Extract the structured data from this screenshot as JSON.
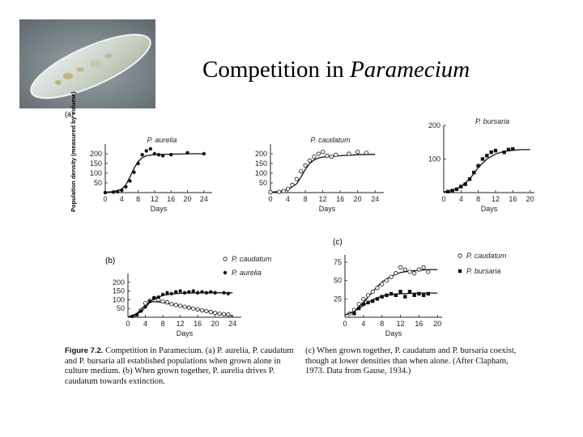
{
  "title": {
    "text": "Competition in ",
    "italic": "Paramecium"
  },
  "panel_labels": [
    "(a)",
    "(b)",
    "(c)"
  ],
  "chart_data": [
    {
      "type": "scatter",
      "panel": "a",
      "title": "P. aurelia",
      "xlabel": "Days",
      "ylabel": "Population density (measured by volume)",
      "xlim": [
        0,
        26
      ],
      "ylim": [
        0,
        250
      ],
      "x_ticks": [
        0,
        4,
        8,
        12,
        16,
        20,
        24
      ],
      "y_ticks": [
        50,
        100,
        150,
        200
      ],
      "series": [
        {
          "color": "#111111",
          "marker": "filled",
          "points": [
            [
              0,
              0
            ],
            [
              2,
              3
            ],
            [
              3,
              5
            ],
            [
              4,
              12
            ],
            [
              5,
              30
            ],
            [
              6,
              60
            ],
            [
              7,
              105
            ],
            [
              8,
              150
            ],
            [
              9,
              195
            ],
            [
              10,
              215
            ],
            [
              11,
              225
            ],
            [
              12,
              200
            ],
            [
              13,
              195
            ],
            [
              14,
              190
            ],
            [
              16,
              195
            ],
            [
              20,
              205
            ],
            [
              24,
              200
            ]
          ],
          "curve": [
            [
              0,
              2
            ],
            [
              2,
              5
            ],
            [
              4,
              18
            ],
            [
              5,
              40
            ],
            [
              6,
              80
            ],
            [
              7,
              125
            ],
            [
              8,
              160
            ],
            [
              9,
              180
            ],
            [
              10,
              190
            ],
            [
              12,
              196
            ],
            [
              16,
              198
            ],
            [
              20,
              200
            ],
            [
              24,
              200
            ]
          ]
        }
      ]
    },
    {
      "type": "scatter",
      "panel": "a",
      "title": "P. caudatum",
      "xlabel": "Days",
      "xlim": [
        0,
        26
      ],
      "ylim": [
        0,
        250
      ],
      "x_ticks": [
        0,
        4,
        8,
        12,
        16,
        20,
        24
      ],
      "y_ticks": [
        50,
        100,
        150,
        200
      ],
      "series": [
        {
          "color": "#111111",
          "marker": "open",
          "points": [
            [
              0,
              2
            ],
            [
              2,
              4
            ],
            [
              3,
              8
            ],
            [
              4,
              20
            ],
            [
              5,
              40
            ],
            [
              6,
              70
            ],
            [
              7,
              110
            ],
            [
              8,
              140
            ],
            [
              9,
              165
            ],
            [
              10,
              185
            ],
            [
              11,
              200
            ],
            [
              12,
              210
            ],
            [
              13,
              190
            ],
            [
              14,
              185
            ],
            [
              15,
              195
            ],
            [
              18,
              200
            ],
            [
              20,
              210
            ],
            [
              22,
              205
            ]
          ],
          "curve": [
            [
              0,
              2
            ],
            [
              2,
              5
            ],
            [
              4,
              15
            ],
            [
              6,
              45
            ],
            [
              7,
              80
            ],
            [
              8,
              120
            ],
            [
              9,
              150
            ],
            [
              10,
              168
            ],
            [
              11,
              178
            ],
            [
              12,
              183
            ],
            [
              16,
              190
            ],
            [
              20,
              195
            ],
            [
              24,
              197
            ]
          ]
        }
      ]
    },
    {
      "type": "scatter",
      "panel": "a",
      "title": "P. bursaria",
      "xlabel": "Days",
      "xlim": [
        0,
        21
      ],
      "ylim": [
        0,
        200
      ],
      "x_ticks": [
        0,
        4,
        8,
        12,
        16,
        20
      ],
      "y_ticks": [
        100,
        200
      ],
      "series": [
        {
          "color": "#111111",
          "marker": "filled-square",
          "points": [
            [
              1,
              3
            ],
            [
              2,
              6
            ],
            [
              3,
              10
            ],
            [
              4,
              18
            ],
            [
              5,
              25
            ],
            [
              6,
              40
            ],
            [
              7,
              60
            ],
            [
              8,
              80
            ],
            [
              9,
              100
            ],
            [
              10,
              110
            ],
            [
              11,
              120
            ],
            [
              12,
              125
            ],
            [
              14,
              120
            ],
            [
              15,
              128
            ],
            [
              16,
              130
            ]
          ],
          "curve": [
            [
              0,
              2
            ],
            [
              2,
              7
            ],
            [
              4,
              18
            ],
            [
              6,
              40
            ],
            [
              8,
              75
            ],
            [
              10,
              100
            ],
            [
              12,
              115
            ],
            [
              14,
              123
            ],
            [
              16,
              126
            ],
            [
              18,
              128
            ],
            [
              20,
              128
            ]
          ]
        }
      ]
    },
    {
      "type": "scatter",
      "panel": "b",
      "xlabel": "Days",
      "xlim": [
        0,
        26
      ],
      "ylim": [
        0,
        250
      ],
      "x_ticks": [
        0,
        4,
        8,
        12,
        16,
        20,
        24
      ],
      "y_ticks": [
        50,
        100,
        150,
        200
      ],
      "series": [
        {
          "name": "P. caudatum",
          "color": "#111111",
          "marker": "open",
          "points": [
            [
              2,
              10
            ],
            [
              3,
              40
            ],
            [
              4,
              80
            ],
            [
              5,
              95
            ],
            [
              6,
              110
            ],
            [
              7,
              100
            ],
            [
              8,
              90
            ],
            [
              9,
              85
            ],
            [
              10,
              75
            ],
            [
              11,
              70
            ],
            [
              12,
              65
            ],
            [
              13,
              60
            ],
            [
              14,
              55
            ],
            [
              15,
              50
            ],
            [
              16,
              45
            ],
            [
              17,
              40
            ],
            [
              18,
              35
            ],
            [
              19,
              30
            ],
            [
              20,
              25
            ],
            [
              21,
              20
            ],
            [
              22,
              18
            ],
            [
              23,
              15
            ]
          ],
          "curve": [
            [
              0,
              2
            ],
            [
              2,
              20
            ],
            [
              4,
              70
            ],
            [
              5,
              85
            ],
            [
              6,
              90
            ],
            [
              8,
              85
            ],
            [
              10,
              75
            ],
            [
              12,
              65
            ],
            [
              14,
              55
            ],
            [
              16,
              45
            ],
            [
              18,
              35
            ],
            [
              20,
              25
            ],
            [
              22,
              15
            ],
            [
              24,
              8
            ]
          ]
        },
        {
          "name": "P. aurelia",
          "color": "#111111",
          "marker": "filled",
          "points": [
            [
              1,
              5
            ],
            [
              2,
              15
            ],
            [
              3,
              35
            ],
            [
              4,
              60
            ],
            [
              5,
              90
            ],
            [
              6,
              110
            ],
            [
              7,
              115
            ],
            [
              8,
              130
            ],
            [
              9,
              140
            ],
            [
              10,
              135
            ],
            [
              11,
              145
            ],
            [
              12,
              150
            ],
            [
              13,
              140
            ],
            [
              14,
              145
            ],
            [
              15,
              150
            ],
            [
              16,
              140
            ],
            [
              17,
              145
            ],
            [
              18,
              140
            ],
            [
              19,
              145
            ],
            [
              20,
              140
            ],
            [
              22,
              140
            ],
            [
              23,
              135
            ]
          ],
          "curve": [
            [
              0,
              2
            ],
            [
              2,
              15
            ],
            [
              4,
              55
            ],
            [
              5,
              85
            ],
            [
              6,
              105
            ],
            [
              8,
              125
            ],
            [
              10,
              133
            ],
            [
              12,
              137
            ],
            [
              16,
              140
            ],
            [
              20,
              140
            ],
            [
              24,
              140
            ]
          ]
        }
      ]
    },
    {
      "type": "scatter",
      "panel": "c",
      "xlabel": "Days",
      "xlim": [
        0,
        21
      ],
      "ylim": [
        0,
        85
      ],
      "x_ticks": [
        0,
        4,
        8,
        12,
        16,
        20
      ],
      "y_ticks": [
        25,
        50,
        75
      ],
      "series": [
        {
          "name": "P. caudatum",
          "color": "#111111",
          "marker": "open",
          "points": [
            [
              1,
              5
            ],
            [
              2,
              10
            ],
            [
              3,
              18
            ],
            [
              4,
              25
            ],
            [
              5,
              30
            ],
            [
              6,
              35
            ],
            [
              7,
              40
            ],
            [
              8,
              45
            ],
            [
              9,
              50
            ],
            [
              10,
              55
            ],
            [
              11,
              60
            ],
            [
              12,
              68
            ],
            [
              13,
              65
            ],
            [
              14,
              62
            ],
            [
              15,
              60
            ],
            [
              16,
              65
            ],
            [
              17,
              68
            ],
            [
              18,
              62
            ]
          ],
          "curve": [
            [
              0,
              3
            ],
            [
              2,
              8
            ],
            [
              4,
              20
            ],
            [
              6,
              35
            ],
            [
              8,
              48
            ],
            [
              10,
              56
            ],
            [
              12,
              61
            ],
            [
              14,
              63
            ],
            [
              16,
              64
            ],
            [
              18,
              65
            ],
            [
              20,
              65
            ]
          ]
        },
        {
          "name": "P. bursaria",
          "color": "#111111",
          "marker": "filled-square",
          "points": [
            [
              2,
              5
            ],
            [
              3,
              12
            ],
            [
              4,
              18
            ],
            [
              5,
              20
            ],
            [
              6,
              22
            ],
            [
              7,
              25
            ],
            [
              8,
              28
            ],
            [
              9,
              30
            ],
            [
              10,
              32
            ],
            [
              11,
              30
            ],
            [
              12,
              35
            ],
            [
              13,
              28
            ],
            [
              14,
              35
            ],
            [
              15,
              30
            ],
            [
              16,
              32
            ],
            [
              17,
              30
            ],
            [
              18,
              32
            ]
          ],
          "curve": [
            [
              0,
              3
            ],
            [
              2,
              8
            ],
            [
              4,
              16
            ],
            [
              6,
              24
            ],
            [
              8,
              29
            ],
            [
              10,
              31
            ],
            [
              12,
              32
            ],
            [
              16,
              33
            ],
            [
              20,
              33
            ]
          ]
        }
      ]
    }
  ],
  "caption_left": {
    "lead": "Figure 7.2.",
    "text": "Competition in Paramecium. (a) P. aurelia, P. caudatum and P. bursaria all established populations when grown alone in culture medium. (b) When grown together, P. aurelia drives P. caudatum towards extinction."
  },
  "caption_right": {
    "text": "(c) When grown together, P. caudatum and P. bursaria coexist, though at lower densities than when alone. (After Clapham, 1973. Data from Gause, 1934.)"
  }
}
